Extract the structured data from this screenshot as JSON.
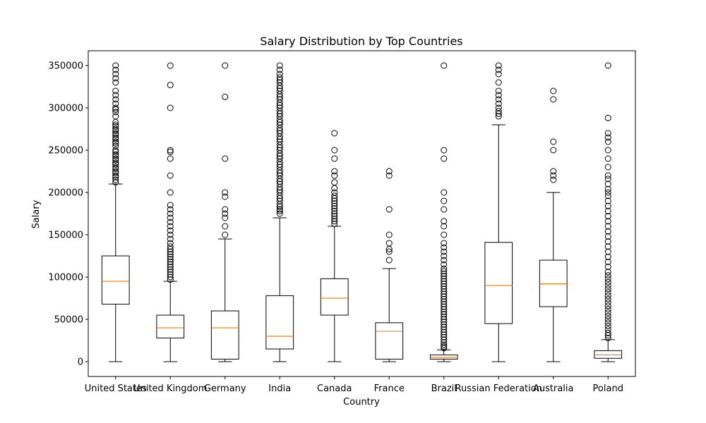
{
  "chart_data": {
    "type": "box",
    "title": "Salary Distribution by Top Countries",
    "xlabel": "Country",
    "ylabel": "Salary",
    "ylim": [
      -17500,
      367500
    ],
    "yticks": [
      0,
      50000,
      100000,
      150000,
      200000,
      250000,
      300000,
      350000
    ],
    "ytick_labels": [
      "0",
      "50000",
      "100000",
      "150000",
      "200000",
      "250000",
      "300000",
      "350000"
    ],
    "grid": false,
    "colors": {
      "box": "#000000",
      "median": "#ff7f0e",
      "outlier": "#000000"
    },
    "boxes": [
      {
        "category": "United States",
        "whisker_low": 0,
        "q1": 68000,
        "median": 95000,
        "q3": 125000,
        "whisker_high": 210000,
        "outliers": [
          212000,
          215000,
          218000,
          220000,
          223000,
          225000,
          228000,
          230000,
          233000,
          235000,
          238000,
          240000,
          243000,
          245000,
          248000,
          250000,
          255000,
          258000,
          260000,
          263000,
          265000,
          268000,
          270000,
          273000,
          275000,
          278000,
          280000,
          283000,
          290000,
          295000,
          298000,
          300000,
          305000,
          310000,
          315000,
          320000,
          330000,
          335000,
          340000,
          345000,
          350000
        ]
      },
      {
        "category": "United Kingdom",
        "whisker_low": 0,
        "q1": 28000,
        "median": 40000,
        "q3": 55000,
        "whisker_high": 95000,
        "outliers": [
          97000,
          100000,
          103000,
          106000,
          109000,
          112000,
          115000,
          118000,
          121000,
          124000,
          127000,
          130000,
          133000,
          136000,
          140000,
          145000,
          150000,
          155000,
          160000,
          165000,
          170000,
          175000,
          180000,
          185000,
          200000,
          220000,
          240000,
          248000,
          250000,
          300000,
          327000,
          350000
        ]
      },
      {
        "category": "Germany",
        "whisker_low": 0,
        "q1": 3000,
        "median": 40000,
        "q3": 60000,
        "whisker_high": 145000,
        "outliers": [
          150000,
          160000,
          170000,
          175000,
          180000,
          195000,
          200000,
          240000,
          313000,
          350000
        ]
      },
      {
        "category": "India",
        "whisker_low": 0,
        "q1": 15000,
        "median": 30000,
        "q3": 78000,
        "whisker_high": 170000,
        "outliers": [
          175000,
          178000,
          180000,
          183000,
          186000,
          190000,
          193000,
          196000,
          200000,
          203000,
          206000,
          210000,
          213000,
          216000,
          220000,
          223000,
          226000,
          230000,
          233000,
          236000,
          240000,
          243000,
          246000,
          250000,
          253000,
          256000,
          260000,
          263000,
          266000,
          270000,
          273000,
          276000,
          280000,
          283000,
          286000,
          290000,
          293000,
          296000,
          300000,
          303000,
          306000,
          310000,
          313000,
          316000,
          320000,
          323000,
          326000,
          330000,
          333000,
          336000,
          340000,
          345000,
          350000
        ]
      },
      {
        "category": "Canada",
        "whisker_low": 0,
        "q1": 55000,
        "median": 75000,
        "q3": 98000,
        "whisker_high": 160000,
        "outliers": [
          163000,
          166000,
          169000,
          172000,
          175000,
          178000,
          181000,
          184000,
          187000,
          190000,
          193000,
          196000,
          200000,
          205000,
          212000,
          220000,
          225000,
          240000,
          250000,
          270000
        ]
      },
      {
        "category": "France",
        "whisker_low": 0,
        "q1": 3000,
        "median": 36000,
        "q3": 46000,
        "whisker_high": 110000,
        "outliers": [
          120000,
          130000,
          133000,
          140000,
          150000,
          180000,
          220000,
          225000
        ]
      },
      {
        "category": "Brazil",
        "whisker_low": 0,
        "q1": 3000,
        "median": 5000,
        "q3": 8000,
        "whisker_high": 14000,
        "outliers": [
          16000,
          18000,
          20000,
          23000,
          26000,
          29000,
          32000,
          35000,
          38000,
          41000,
          44000,
          47000,
          50000,
          53000,
          56000,
          59000,
          62000,
          65000,
          68000,
          71000,
          74000,
          77000,
          80000,
          83000,
          86000,
          89000,
          92000,
          95000,
          98000,
          101000,
          104000,
          107000,
          110000,
          115000,
          120000,
          125000,
          130000,
          135000,
          140000,
          150000,
          160000,
          166000,
          180000,
          190000,
          200000,
          240000,
          250000,
          350000
        ]
      },
      {
        "category": "Russian Federation",
        "whisker_low": 0,
        "q1": 45000,
        "median": 90000,
        "q3": 141000,
        "whisker_high": 280000,
        "outliers": [
          290000,
          293000,
          296000,
          300000,
          305000,
          310000,
          315000,
          320000,
          330000,
          340000,
          345000,
          350000
        ]
      },
      {
        "category": "Australia",
        "whisker_low": 0,
        "q1": 65000,
        "median": 92000,
        "q3": 120000,
        "whisker_high": 200000,
        "outliers": [
          215000,
          220000,
          225000,
          250000,
          260000,
          310000,
          320000
        ]
      },
      {
        "category": "Poland",
        "whisker_low": 0,
        "q1": 4000,
        "median": 8000,
        "q3": 13000,
        "whisker_high": 26000,
        "outliers": [
          28000,
          31000,
          34000,
          38000,
          42000,
          46000,
          50000,
          54000,
          58000,
          62000,
          66000,
          70000,
          74000,
          78000,
          82000,
          86000,
          90000,
          94000,
          98000,
          102000,
          106000,
          112000,
          118000,
          124000,
          130000,
          136000,
          142000,
          148000,
          154000,
          160000,
          166000,
          172000,
          178000,
          184000,
          190000,
          196000,
          200000,
          204000,
          210000,
          216000,
          220000,
          230000,
          240000,
          250000,
          260000,
          265000,
          270000,
          288000,
          350000
        ]
      }
    ]
  }
}
